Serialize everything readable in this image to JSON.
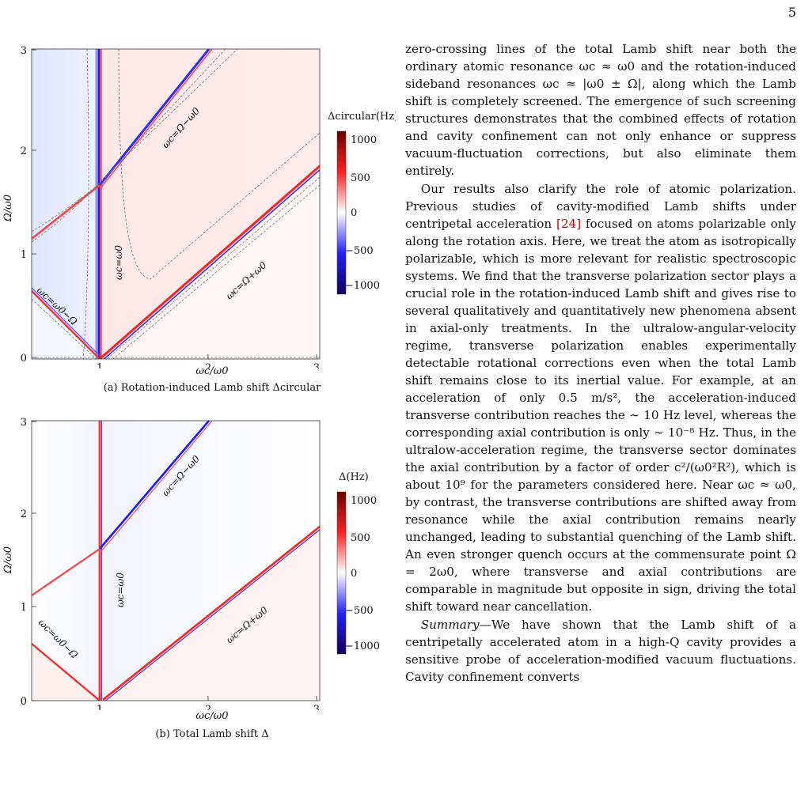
{
  "page": {
    "number": "5"
  },
  "figures": [
    {
      "id": "a",
      "caption": "(a) Rotation-induced Lamb shift Δcircular",
      "colorbar_label": "Δcircular(Hz)",
      "xlabel": "ωc/ω0",
      "ylabel": "Ω/ω0",
      "line_labels": [
        "ωc=Ω−ω0",
        "ωc=ω0",
        "ωc=Ω+ω0",
        "ωc=ω0−Ω"
      ]
    },
    {
      "id": "b",
      "caption": "(b) Total Lamb shift Δ",
      "colorbar_label": "Δ(Hz)",
      "xlabel": "ωc/ω0",
      "ylabel": "Ω/ω0",
      "line_labels": [
        "ωc=Ω−ω0",
        "ωc=ω0",
        "ωc=Ω+ω0",
        "ωc=ω0−Ω"
      ]
    }
  ],
  "chart_data": [
    {
      "type": "heatmap",
      "title": "(a) Rotation-induced Lamb shift Δcircular",
      "xlabel": "ωc/ω0",
      "ylabel": "Ω/ω0",
      "xlim": [
        0.35,
        3.0
      ],
      "ylim": [
        0,
        3.0
      ],
      "xticks": [
        1,
        2,
        3
      ],
      "yticks": [
        0,
        1,
        2,
        3
      ],
      "colorbar": {
        "label": "Δcircular(Hz)",
        "ticks": [
          1000,
          500,
          0,
          -500,
          -1000
        ],
        "colors": [
          "#800000",
          "#ff2a2a",
          "#ffffff",
          "#2a2aff",
          "#1a0066"
        ]
      },
      "contours": "dashed gray",
      "resonance_lines": [
        "ωc=ω0",
        "ωc=Ω−ω0",
        "ωc=Ω+ω0",
        "ωc=ω0−Ω"
      ]
    },
    {
      "type": "heatmap",
      "title": "(b) Total Lamb shift Δ",
      "xlabel": "ωc/ω0",
      "ylabel": "Ω/ω0",
      "xlim": [
        0.35,
        3.0
      ],
      "ylim": [
        0,
        3.0
      ],
      "xticks": [
        1,
        2,
        3
      ],
      "yticks": [
        0,
        1,
        2,
        3
      ],
      "colorbar": {
        "label": "Δ(Hz)",
        "ticks": [
          1000,
          500,
          0,
          -500,
          -1000
        ],
        "colors": [
          "#800000",
          "#ff2a2a",
          "#ffffff",
          "#2a2aff",
          "#1a0066"
        ]
      },
      "resonance_lines": [
        "ωc=ω0",
        "ωc=Ω−ω0",
        "ωc=Ω+ω0",
        "ωc=ω0−Ω"
      ]
    }
  ],
  "text": {
    "p1": "zero-crossing lines of the total Lamb shift near both the ordinary atomic resonance ωc ≈ ω0 and the rotation-induced sideband resonances ωc ≈ |ω0 ± Ω|, along which the Lamb shift is completely screened. The emergence of such screening structures demonstrates that the combined effects of rotation and cavity confinement can not only enhance or suppress vacuum-fluctuation corrections, but also eliminate them entirely.",
    "p2_a": "Our results also clarify the role of atomic polarization. Previous studies of cavity-modified Lamb shifts under centripetal acceleration ",
    "p2_cite": "[24]",
    "p2_b": " focused on atoms polarizable only along the rotation axis. Here, we treat the atom as isotropically polarizable, which is more relevant for realistic spectroscopic systems. We find that the transverse polarization sector plays a crucial role in the rotation-induced Lamb shift and gives rise to several qualitatively and quantitatively new phenomena absent in axial-only treatments. In the ultralow-angular-velocity regime, transverse polarization enables experimentally detectable rotational corrections even when the total Lamb shift remains close to its inertial value. For example, at an acceleration of only 0.5 m/s², the acceleration-induced transverse contribution reaches the ∼ 10 Hz level, whereas the corresponding axial contribution is only ∼ 10⁻⁸ Hz. Thus, in the ultralow-acceleration regime, the transverse sector dominates the axial contribution by a factor of order c²/(ω0²R²), which is about 10⁹ for the parameters considered here. Near ωc ≈ ω0, by contrast, the transverse contributions are shifted away from resonance while the axial contribution remains nearly unchanged, leading to substantial quenching of the Lamb shift. An even stronger quench occurs at the commensurate point Ω = 2ω0, where transverse and axial contributions are comparable in magnitude but opposite in sign, driving the total shift toward near cancellation.",
    "p3_lead": "Summary",
    "p3": "—We have shown that the Lamb shift of a centripetally accelerated atom in a high-Q cavity provides a sensitive probe of acceleration-modified vacuum fluctuations. Cavity confinement converts"
  }
}
